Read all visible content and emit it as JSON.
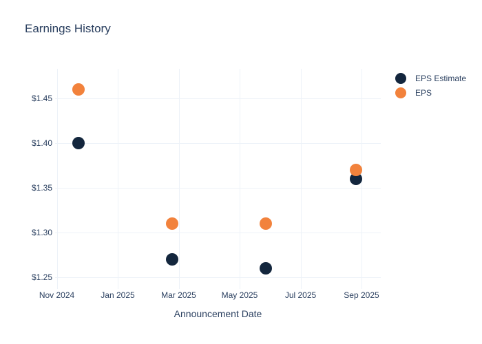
{
  "title": "Earnings History",
  "axis": {
    "x_title": "Announcement Date"
  },
  "legend": {
    "items": [
      {
        "label": "EPS Estimate",
        "color": "#13263d"
      },
      {
        "label": "EPS",
        "color": "#f2823c"
      }
    ]
  },
  "colors": {
    "eps_estimate": "#13263d",
    "eps_actual": "#f2823c",
    "text": "#2a3f5f",
    "gridline": "#edf2f8",
    "background": "#ffffff"
  },
  "chart_data": {
    "type": "scatter",
    "title": "Earnings History",
    "xlabel": "Announcement Date",
    "ylabel": "",
    "grid": true,
    "legend_position": "right",
    "x_tick_labels": [
      "Nov 2024",
      "Jan 2025",
      "Mar 2025",
      "May 2025",
      "Jul 2025",
      "Sep 2025"
    ],
    "y_ticks": [
      {
        "value": 1.25,
        "label": "$1.25"
      },
      {
        "value": 1.3,
        "label": "$1.30"
      },
      {
        "value": 1.35,
        "label": "$1.35"
      },
      {
        "value": 1.4,
        "label": "$1.40"
      },
      {
        "value": 1.45,
        "label": "$1.45"
      }
    ],
    "ylim": [
      1.24,
      1.48
    ],
    "x_approx_dates": [
      "2024-11-23",
      "2025-02-25",
      "2025-05-27",
      "2025-08-26"
    ],
    "series": [
      {
        "name": "EPS Estimate",
        "color": "#13263d",
        "values": [
          1.4,
          1.27,
          1.26,
          1.36
        ]
      },
      {
        "name": "EPS",
        "color": "#f2823c",
        "values": [
          1.46,
          1.31,
          1.31,
          1.37
        ]
      }
    ]
  }
}
